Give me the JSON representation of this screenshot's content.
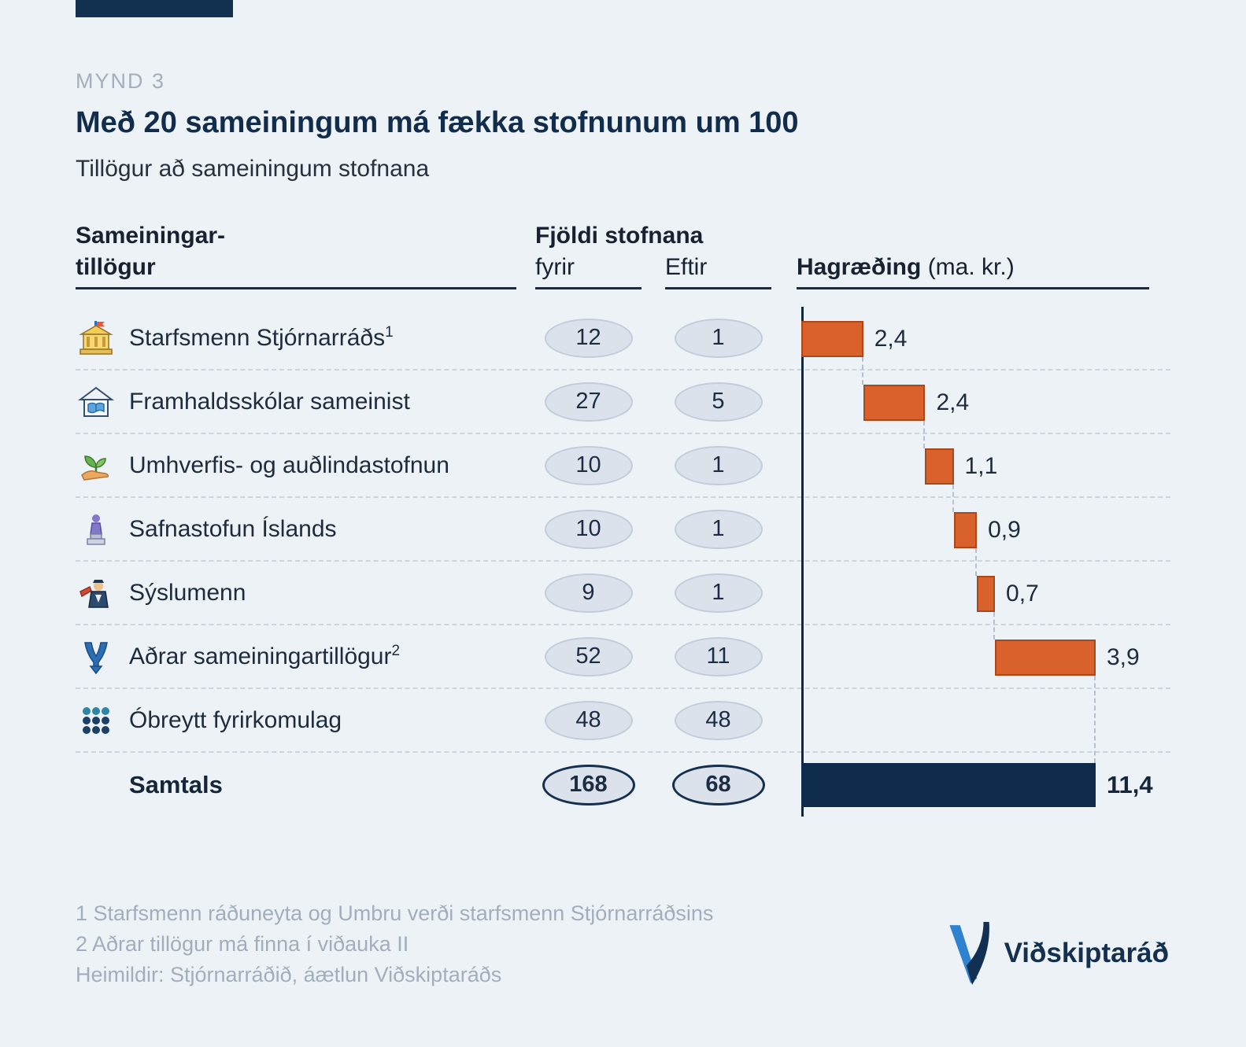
{
  "page": {
    "background": "#edf2f7",
    "accent_navy": "#12304f",
    "accent_orange": "#d9622c"
  },
  "header": {
    "kicker": "MYND 3",
    "title": "Með 20 sameiningum má fækka stofnunum um 100",
    "subtitle": "Tillögur að sameiningum stofnana"
  },
  "table": {
    "col_label_line1": "Sameiningar-",
    "col_label_line2": "tillögur",
    "group_header": "Fjöldi stofnana",
    "col_before": "fyrir",
    "col_after": "Eftir",
    "col_savings": "Hagræðing",
    "col_savings_unit": "(ma. kr.)"
  },
  "rows": [
    {
      "icon": "government-building-icon",
      "label": "Starfsmenn Stjórnarráðs",
      "footnote_ref": "1",
      "before": "12",
      "after": "1",
      "savings": 2.4,
      "savings_label": "2,4"
    },
    {
      "icon": "school-icon",
      "label": "Framhaldsskólar sameinist",
      "footnote_ref": "",
      "before": "27",
      "after": "5",
      "savings": 2.4,
      "savings_label": "2,4"
    },
    {
      "icon": "sprout-hand-icon",
      "label": "Umhverfis- og auðlindastofnun",
      "footnote_ref": "",
      "before": "10",
      "after": "1",
      "savings": 1.1,
      "savings_label": "1,1"
    },
    {
      "icon": "statue-icon",
      "label": "Safnastofun Íslands",
      "footnote_ref": "",
      "before": "10",
      "after": "1",
      "savings": 0.9,
      "savings_label": "0,9"
    },
    {
      "icon": "magistrate-icon",
      "label": "Sýslumenn",
      "footnote_ref": "",
      "before": "9",
      "after": "1",
      "savings": 0.7,
      "savings_label": "0,7"
    },
    {
      "icon": "merge-arrows-icon",
      "label": "Aðrar sameiningartillögur",
      "footnote_ref": "2",
      "before": "52",
      "after": "11",
      "savings": 3.9,
      "savings_label": "3,9"
    },
    {
      "icon": "people-dots-icon",
      "label": "Óbreytt fyrirkomulag",
      "footnote_ref": "",
      "before": "48",
      "after": "48",
      "savings": 0,
      "savings_label": ""
    }
  ],
  "total": {
    "label": "Samtals",
    "before": "168",
    "after": "68",
    "savings": 11.4,
    "savings_label": "11,4"
  },
  "footnotes": [
    "1 Starfsmenn ráðuneyta og Umbru verði starfsmenn Stjórnarráðsins",
    "2 Aðrar tillögur má finna í viðauka II",
    "Heimildir: Stjórnarráðið, áætlun Viðskiptaráðs"
  ],
  "logo": {
    "name": "Viðskiptaráð"
  },
  "chart_data": {
    "type": "bar",
    "subtype": "waterfall",
    "title": "Hagræðing (ma. kr.)",
    "categories": [
      "Starfsmenn Stjórnarráðs",
      "Framhaldsskólar sameinist",
      "Umhverfis- og auðlindastofnun",
      "Safnastofun Íslands",
      "Sýslumenn",
      "Aðrar sameiningartillögur",
      "Óbreytt fyrirkomulag",
      "Samtals"
    ],
    "values": [
      2.4,
      2.4,
      1.1,
      0.9,
      0.7,
      3.9,
      0,
      11.4
    ],
    "counts_before": [
      12,
      27,
      10,
      10,
      9,
      52,
      48,
      168
    ],
    "counts_after": [
      1,
      5,
      1,
      1,
      1,
      11,
      48,
      68
    ],
    "unit": "ma. kr.",
    "xlim": [
      0,
      11.4
    ],
    "bar_color": "#d9622c",
    "total_color": "#0f2b4c",
    "legend": "none",
    "grid": "dashed-row-separators"
  }
}
